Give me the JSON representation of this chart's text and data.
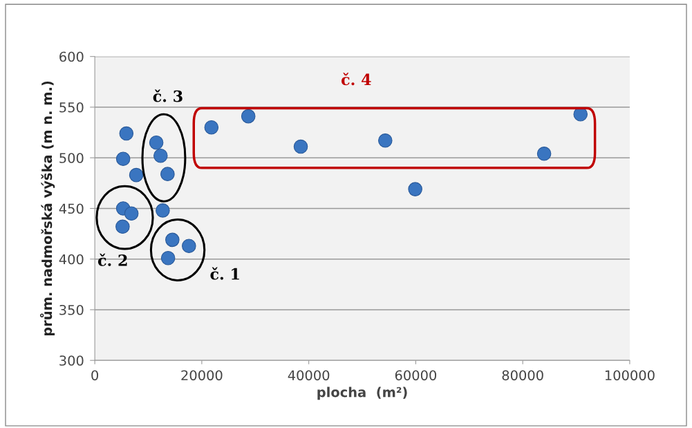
{
  "chart_data": {
    "type": "scatter",
    "xlabel": "plocha  (m²)",
    "ylabel": "prům. nadmořská výška (m n. m.)",
    "x": [
      5900,
      5300,
      7750,
      11500,
      12300,
      13600,
      12700,
      5300,
      6850,
      5200,
      14500,
      17600,
      13700,
      21800,
      28700,
      38500,
      54300,
      59900,
      84000,
      90800
    ],
    "values": [
      524,
      499,
      483,
      515,
      502,
      484,
      448,
      450,
      445,
      432,
      419,
      413,
      401,
      530,
      541,
      511,
      517,
      469,
      504,
      543
    ],
    "color": "#3a75c0",
    "marker": "circle",
    "xlim": [
      0,
      100000
    ],
    "xticks": [
      0,
      20000,
      40000,
      60000,
      80000,
      100000
    ],
    "ylim": [
      300,
      600
    ],
    "yticks": [
      300,
      350,
      400,
      450,
      500,
      550,
      600
    ],
    "grid": "y",
    "annotations": [
      "č. 1",
      "č. 2",
      "č. 3",
      "č. 4"
    ]
  }
}
